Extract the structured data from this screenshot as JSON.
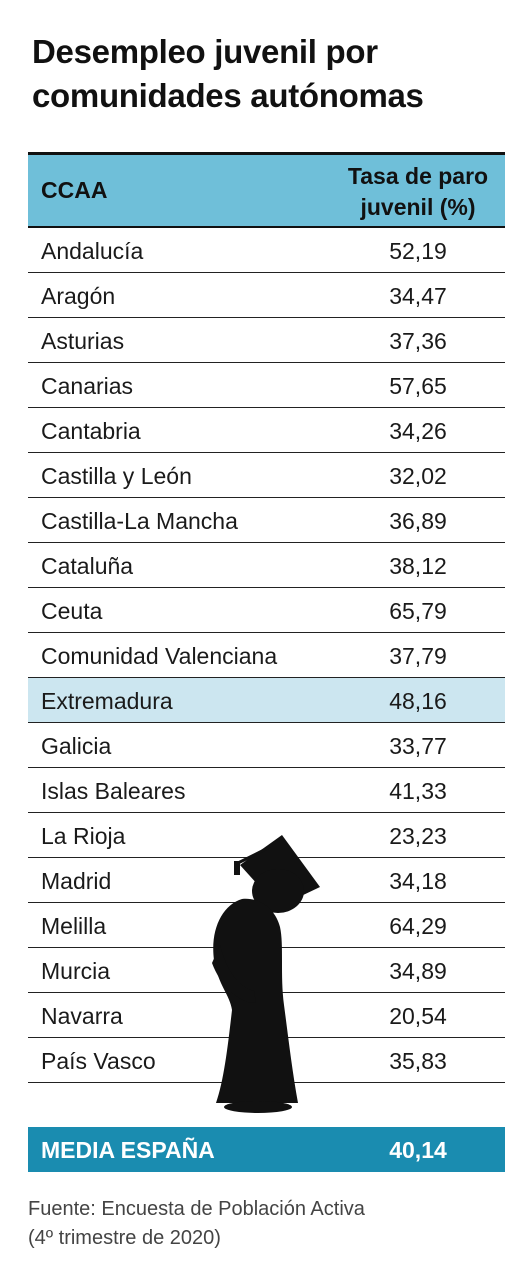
{
  "title": "Desempleo juvenil por comunidades autónomas",
  "table": {
    "header_ccaa": "CCAA",
    "header_tasa_line1": "Tasa de paro",
    "header_tasa_line2": "juvenil (%)",
    "rows": [
      {
        "name": "Andalucía",
        "value": "52,19"
      },
      {
        "name": "Aragón",
        "value": "34,47"
      },
      {
        "name": "Asturias",
        "value": "37,36"
      },
      {
        "name": "Canarias",
        "value": "57,65"
      },
      {
        "name": "Cantabria",
        "value": "34,26"
      },
      {
        "name": "Castilla y León",
        "value": "32,02"
      },
      {
        "name": "Castilla-La Mancha",
        "value": "36,89"
      },
      {
        "name": "Cataluña",
        "value": "38,12"
      },
      {
        "name": "Ceuta",
        "value": "65,79"
      },
      {
        "name": "Comunidad Valenciana",
        "value": "37,79"
      },
      {
        "name": "Extremadura",
        "value": "48,16"
      },
      {
        "name": "Galicia",
        "value": "33,77"
      },
      {
        "name": "Islas Baleares",
        "value": "41,33"
      },
      {
        "name": "La Rioja",
        "value": "23,23"
      },
      {
        "name": "Madrid",
        "value": "34,18"
      },
      {
        "name": "Melilla",
        "value": "64,29"
      },
      {
        "name": "Murcia",
        "value": "34,89"
      },
      {
        "name": "Navarra",
        "value": "20,54"
      },
      {
        "name": "País Vasco",
        "value": "35,83"
      }
    ],
    "highlighted_row": "Extremadura"
  },
  "media": {
    "label": "MEDIA ESPAÑA",
    "value": "40,14"
  },
  "source": {
    "line1": "Fuente: Encuesta de Población Activa",
    "line2": "(4º trimestre de 2020)"
  },
  "colors": {
    "header_bg": "#6fbfd9",
    "highlight_bg": "#cce6f0",
    "media_bg": "#1a8cb0"
  },
  "icons": [
    "graduate-silhouette-icon"
  ]
}
